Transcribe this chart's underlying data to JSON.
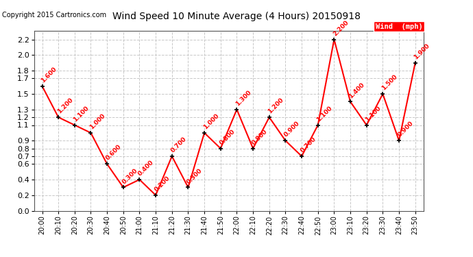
{
  "title": "Wind Speed 10 Minute Average (4 Hours) 20150918",
  "copyright": "Copyright 2015 Cartronics.com",
  "legend_label": "Wind  (mph)",
  "x_labels": [
    "20:00",
    "20:10",
    "20:20",
    "20:30",
    "20:40",
    "20:50",
    "21:00",
    "21:10",
    "21:20",
    "21:30",
    "21:40",
    "21:50",
    "22:00",
    "22:10",
    "22:20",
    "22:30",
    "22:40",
    "22:50",
    "23:00",
    "23:10",
    "23:20",
    "23:30",
    "23:40",
    "23:50"
  ],
  "y_values": [
    1.6,
    1.2,
    1.1,
    1.0,
    0.6,
    0.3,
    0.4,
    0.2,
    0.7,
    0.3,
    1.0,
    0.8,
    1.3,
    0.8,
    1.2,
    0.9,
    0.7,
    1.1,
    2.2,
    1.4,
    1.1,
    1.5,
    0.9,
    1.9
  ],
  "label_strings": [
    "1.600",
    "1.200",
    "1.100",
    "1.000",
    "0.600",
    "0.300",
    "0.400",
    "0.200",
    "0.700",
    "0.300",
    "1.000",
    "0.800",
    "1.300",
    "0.800",
    "1.200",
    "0.900",
    "0.700",
    "1.100",
    "2.200",
    "1.400",
    "1.100",
    "1.500",
    "0.900",
    "1.900"
  ],
  "line_color": "#ff0000",
  "marker_color": "#000000",
  "label_color": "#ff0000",
  "legend_bg": "#ff0000",
  "legend_text_color": "#ffffff",
  "bg_color": "#ffffff",
  "plot_bg_color": "#ffffff",
  "grid_color": "#c8c8c8",
  "title_color": "#000000",
  "ylim": [
    0.0,
    2.31
  ],
  "yticks": [
    0.0,
    0.2,
    0.4,
    0.6,
    0.7,
    0.8,
    0.9,
    1.1,
    1.2,
    1.3,
    1.5,
    1.7,
    1.8,
    2.0,
    2.2
  ],
  "ytick_labels": [
    "0.0",
    "0.2",
    "0.4",
    "0.6",
    "0.7",
    "0.8",
    "0.9",
    "1.1",
    "1.2",
    "1.3",
    "1.5",
    "1.7",
    "1.8",
    "2.0",
    "2.2"
  ]
}
